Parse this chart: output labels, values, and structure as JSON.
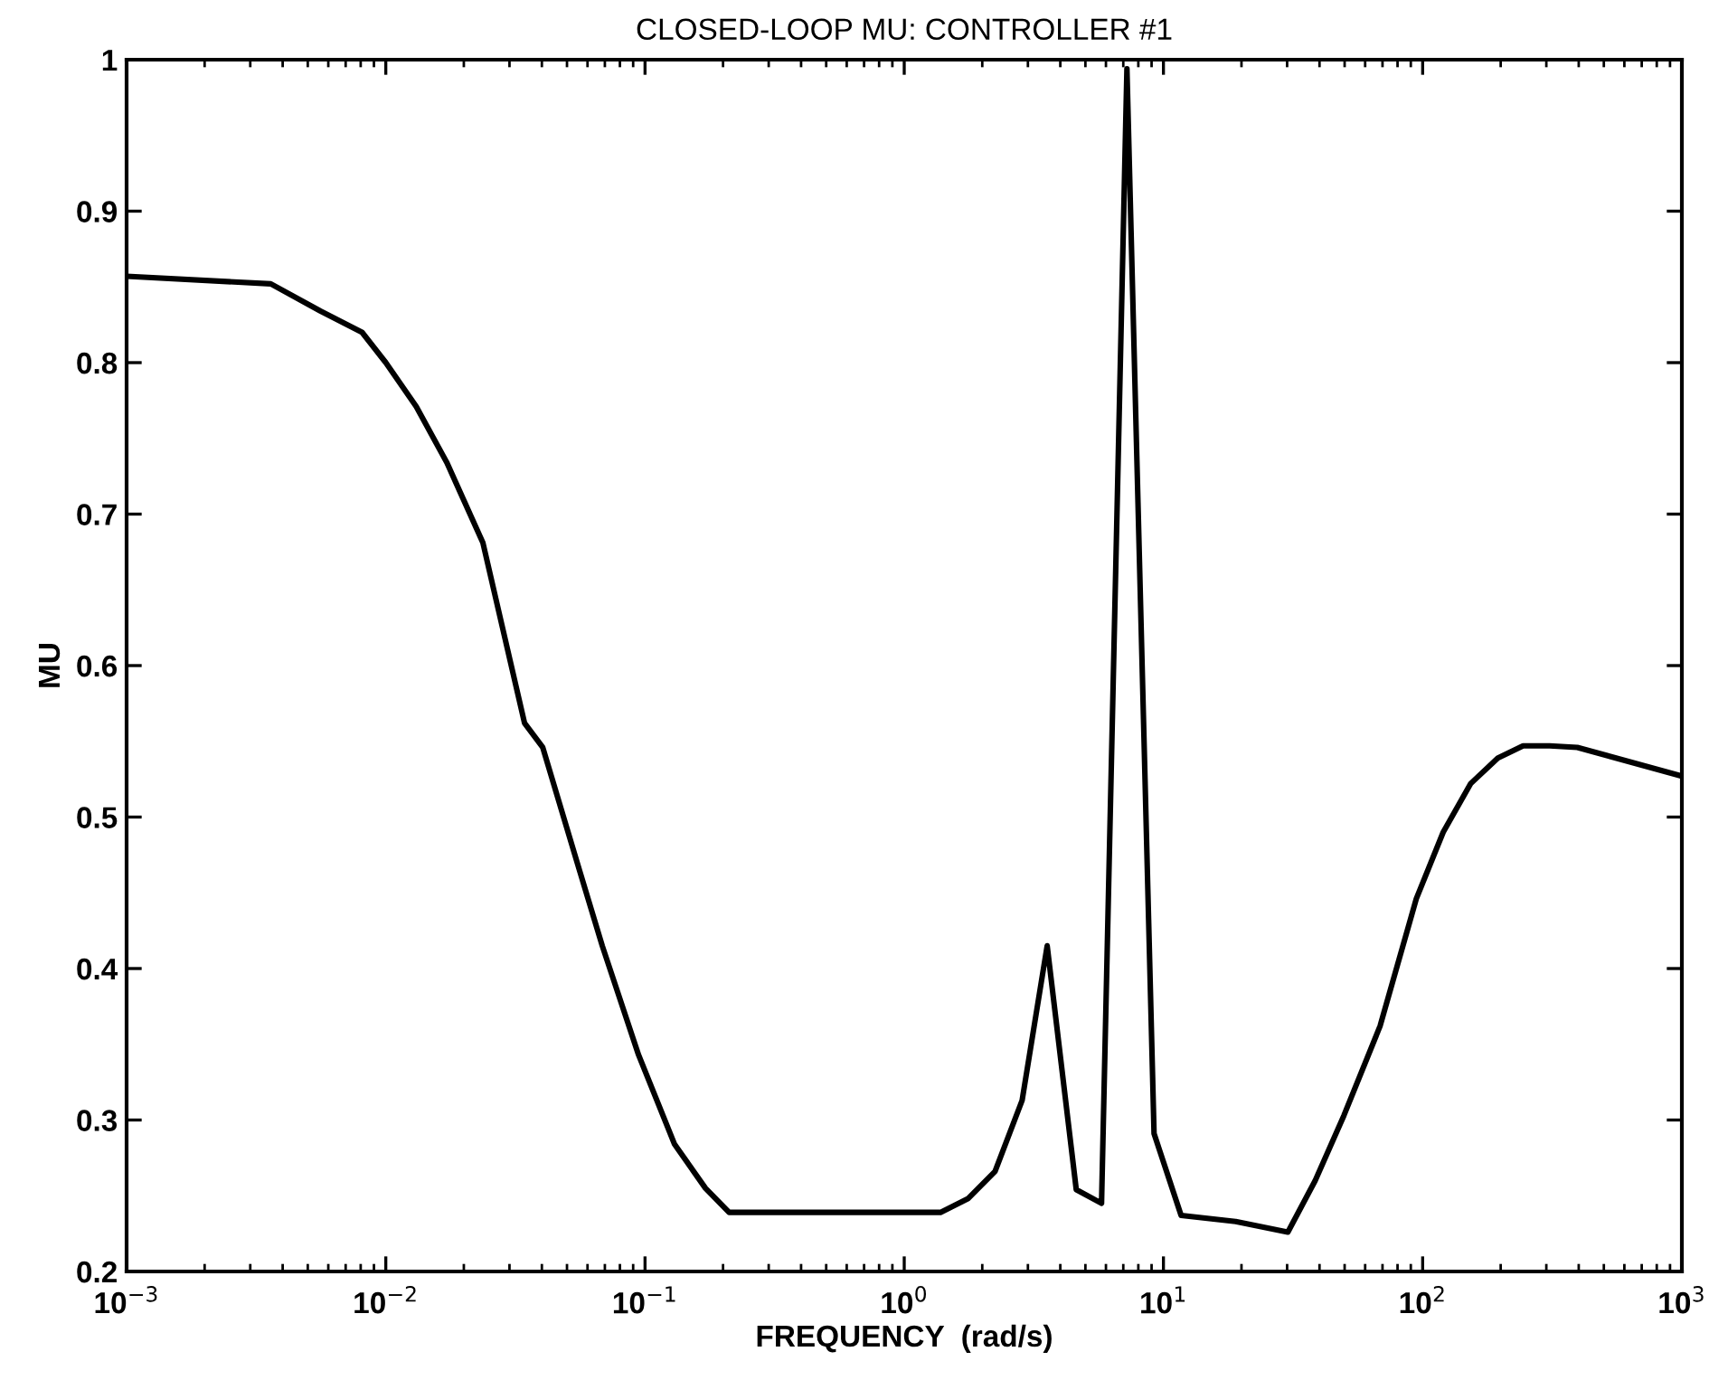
{
  "chart_data": {
    "type": "line",
    "title": "CLOSED-LOOP MU: CONTROLLER #1",
    "xlabel": "FREQUENCY  (rad/s)",
    "ylabel": "MU",
    "log": "x",
    "marker": "none",
    "line_style": "solid",
    "xlim": [
      0.001,
      1000
    ],
    "xticks": [
      {
        "value": 0.001,
        "label": "10$^{−3}$"
      },
      {
        "value": 0.01,
        "label": "10$^{−2}$"
      },
      {
        "value": 0.1,
        "label": "10$^{−1}$"
      },
      {
        "value": 1,
        "label": "10$^{0}$"
      },
      {
        "value": 10,
        "label": "10$^{1}$"
      },
      {
        "value": 100,
        "label": "10$^{2}$"
      },
      {
        "value": 1000,
        "label": "10$^{3}$"
      }
    ],
    "ylim": [
      0.2,
      1
    ],
    "yticks": [
      0.2,
      0.3,
      0.4,
      0.5,
      0.6,
      0.7,
      0.8,
      0.9,
      1
    ],
    "series": [
      {
        "color": "#000000",
        "x": [
          0.001,
          0.0036,
          0.0056,
          0.0081,
          0.01,
          0.0131,
          0.0172,
          0.0237,
          0.0343,
          0.0403,
          0.0556,
          0.0684,
          0.0944,
          0.13,
          0.171,
          0.211,
          1.38,
          1.76,
          2.24,
          2.85,
          3.56,
          4.61,
          5.77,
          7.23,
          9.2,
          11.7,
          19,
          30.2,
          38.5,
          49.7,
          68.5,
          94.5,
          120,
          153,
          195,
          244,
          309,
          395,
          1000
        ],
        "values": [
          0.857,
          0.852,
          0.834,
          0.82,
          0.8,
          0.771,
          0.734,
          0.681,
          0.562,
          0.546,
          0.466,
          0.415,
          0.343,
          0.284,
          0.255,
          0.239,
          0.239,
          0.248,
          0.266,
          0.313,
          0.415,
          0.254,
          0.245,
          0.994,
          0.291,
          0.237,
          0.233,
          0.226,
          0.26,
          0.303,
          0.362,
          0.446,
          0.49,
          0.522,
          0.539,
          0.547,
          0.547,
          0.546,
          0.527
        ]
      }
    ]
  }
}
